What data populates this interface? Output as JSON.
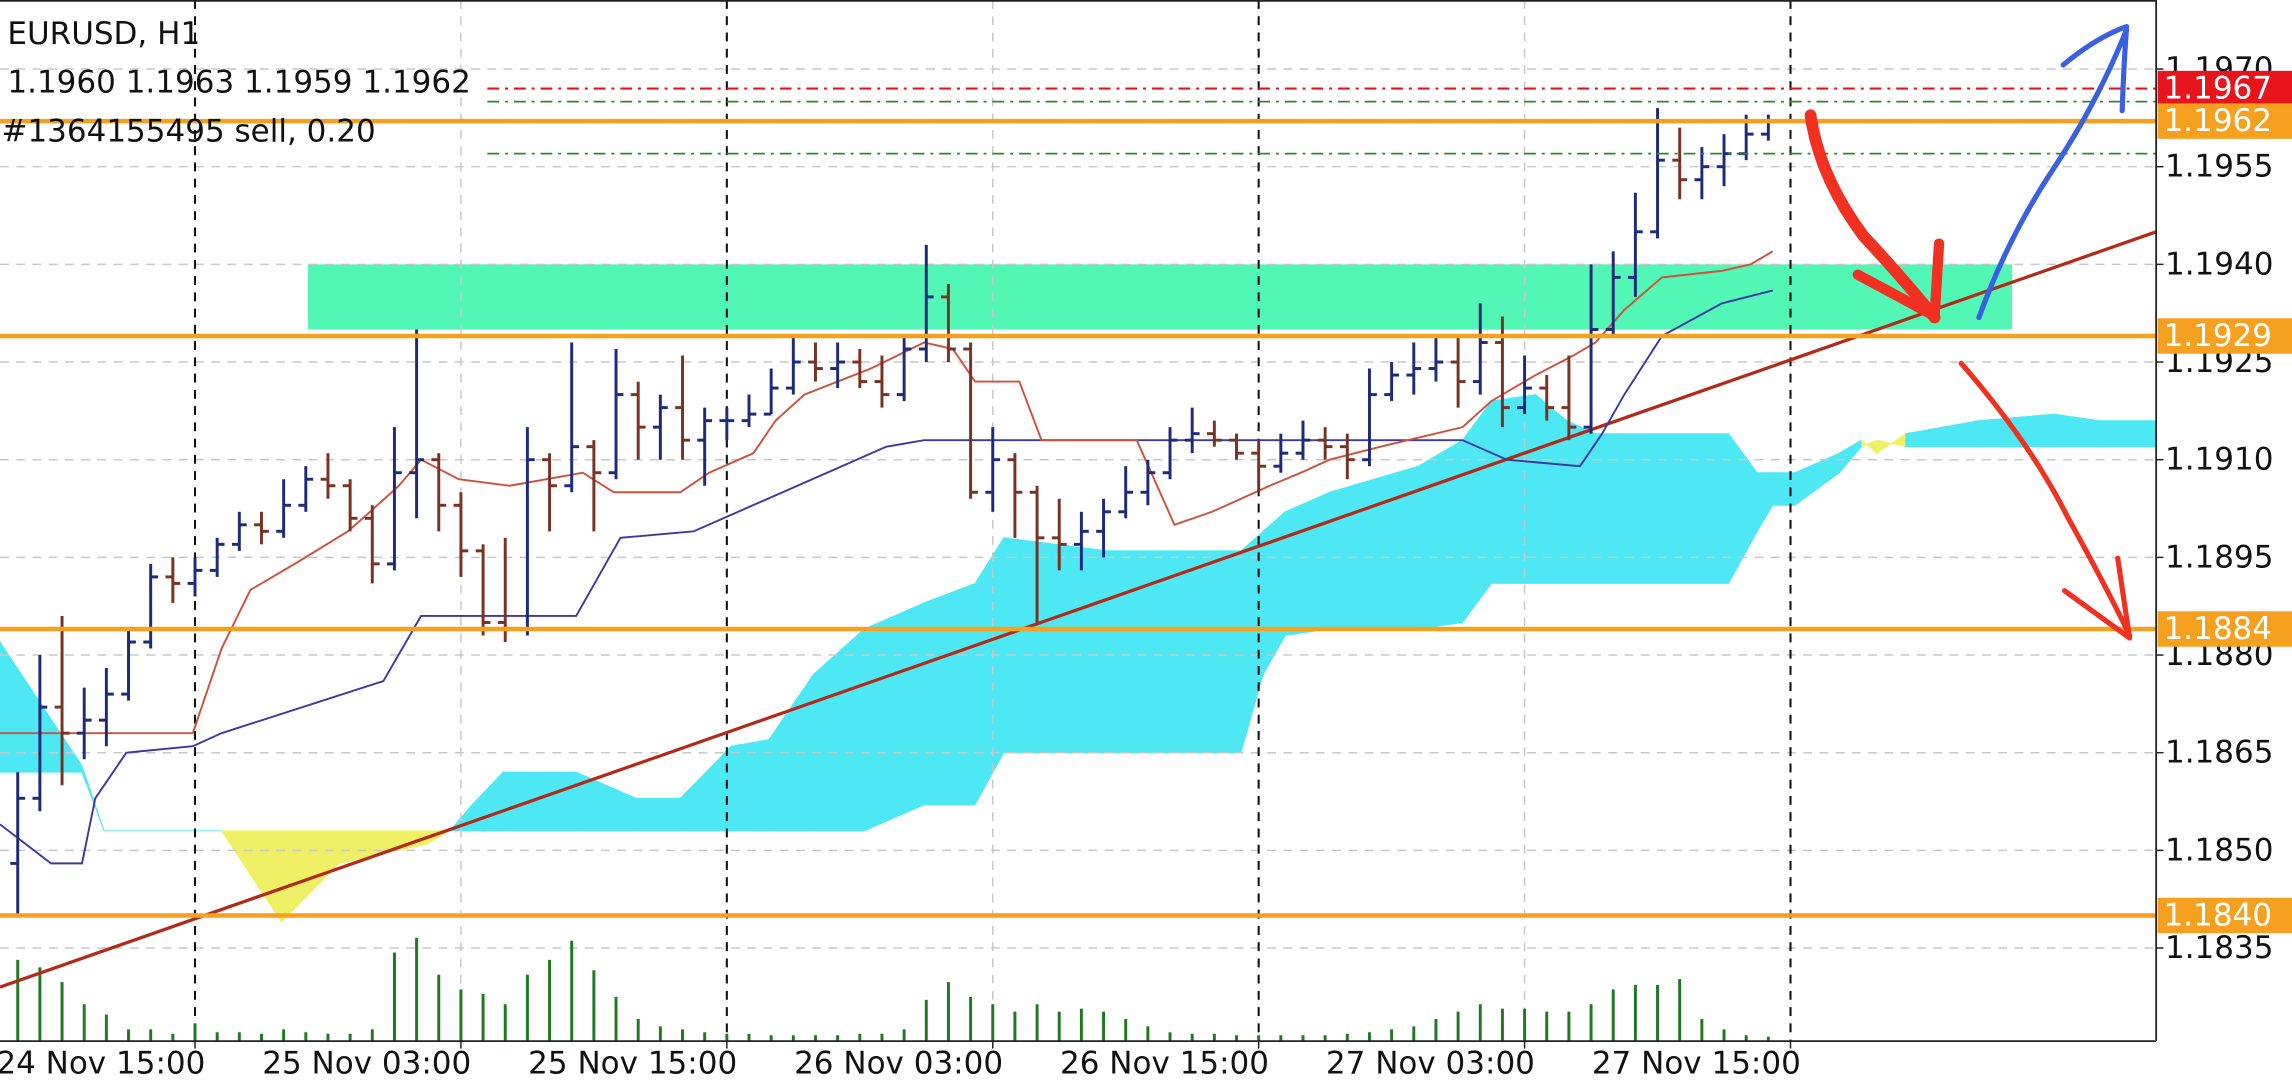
{
  "chart_data": {
    "type": "ohlc",
    "title": "EURUSD, H1",
    "subtitle": "1.1960 1.1963 1.1959 1.1962",
    "annotation": "#1364155495 sell, 0.20",
    "up_color": "#1e2a7a",
    "down_color": "#7a3222",
    "bars": [
      [
        1.1848,
        1.1862,
        1.184,
        1.1858
      ],
      [
        1.1858,
        1.188,
        1.1856,
        1.1872
      ],
      [
        1.1872,
        1.1886,
        1.186,
        1.1868
      ],
      [
        1.1868,
        1.1875,
        1.1864,
        1.187
      ],
      [
        1.187,
        1.1878,
        1.1866,
        1.1874
      ],
      [
        1.1874,
        1.1884,
        1.1873,
        1.1882
      ],
      [
        1.1882,
        1.1894,
        1.1881,
        1.1892
      ],
      [
        1.1892,
        1.1895,
        1.1888,
        1.1891
      ],
      [
        1.1891,
        1.1895,
        1.1889,
        1.1893
      ],
      [
        1.1893,
        1.1898,
        1.1892,
        1.1897
      ],
      [
        1.1897,
        1.1902,
        1.1896,
        1.19
      ],
      [
        1.19,
        1.1902,
        1.1897,
        1.1899
      ],
      [
        1.1899,
        1.1907,
        1.1898,
        1.1903
      ],
      [
        1.1903,
        1.1909,
        1.1902,
        1.1907
      ],
      [
        1.1907,
        1.1911,
        1.1904,
        1.1906
      ],
      [
        1.1906,
        1.1907,
        1.1899,
        1.1901
      ],
      [
        1.1901,
        1.1903,
        1.1891,
        1.1894
      ],
      [
        1.1894,
        1.1915,
        1.1893,
        1.1908
      ],
      [
        1.1908,
        1.193,
        1.1901,
        1.191
      ],
      [
        1.191,
        1.1911,
        1.1899,
        1.1903
      ],
      [
        1.1903,
        1.1905,
        1.1892,
        1.1896
      ],
      [
        1.1896,
        1.1897,
        1.1883,
        1.1885
      ],
      [
        1.1885,
        1.1898,
        1.1882,
        1.1884
      ],
      [
        1.1884,
        1.1915,
        1.1883,
        1.191
      ],
      [
        1.191,
        1.1911,
        1.1899,
        1.1906
      ],
      [
        1.1906,
        1.1928,
        1.1905,
        1.1912
      ],
      [
        1.1912,
        1.1913,
        1.1899,
        1.1908
      ],
      [
        1.1908,
        1.1927,
        1.1907,
        1.192
      ],
      [
        1.192,
        1.1922,
        1.191,
        1.1915
      ],
      [
        1.1915,
        1.192,
        1.191,
        1.1918
      ],
      [
        1.1918,
        1.1926,
        1.191,
        1.1913
      ],
      [
        1.1913,
        1.1918,
        1.1906,
        1.1916
      ],
      [
        1.1916,
        1.1918,
        1.1913,
        1.1916
      ],
      [
        1.1916,
        1.192,
        1.1915,
        1.1917
      ],
      [
        1.1917,
        1.1924,
        1.1917,
        1.1921
      ],
      [
        1.1921,
        1.1929,
        1.192,
        1.1925
      ],
      [
        1.1925,
        1.1928,
        1.1922,
        1.1924
      ],
      [
        1.1924,
        1.1928,
        1.1921,
        1.1925
      ],
      [
        1.1925,
        1.1927,
        1.1921,
        1.1922
      ],
      [
        1.1922,
        1.1926,
        1.1918,
        1.192
      ],
      [
        1.192,
        1.1929,
        1.1919,
        1.1927
      ],
      [
        1.1927,
        1.1943,
        1.1925,
        1.1935
      ],
      [
        1.1935,
        1.1937,
        1.1925,
        1.1927
      ],
      [
        1.1927,
        1.1928,
        1.1904,
        1.1905
      ],
      [
        1.1905,
        1.1915,
        1.1902,
        1.191
      ],
      [
        1.191,
        1.1911,
        1.1898,
        1.1905
      ],
      [
        1.1905,
        1.1906,
        1.1885,
        1.1898
      ],
      [
        1.1898,
        1.1904,
        1.1893,
        1.1897
      ],
      [
        1.1897,
        1.1902,
        1.1893,
        1.1899
      ],
      [
        1.1899,
        1.1904,
        1.1895,
        1.1902
      ],
      [
        1.1902,
        1.1909,
        1.1901,
        1.1905
      ],
      [
        1.1905,
        1.191,
        1.1903,
        1.1908
      ],
      [
        1.1908,
        1.1915,
        1.1907,
        1.1913
      ],
      [
        1.1913,
        1.1918,
        1.1911,
        1.1914
      ],
      [
        1.1914,
        1.1916,
        1.1912,
        1.1913
      ],
      [
        1.1913,
        1.1914,
        1.191,
        1.1911
      ],
      [
        1.1911,
        1.1913,
        1.1905,
        1.1909
      ],
      [
        1.1909,
        1.1914,
        1.1908,
        1.1911
      ],
      [
        1.1911,
        1.1916,
        1.191,
        1.1913
      ],
      [
        1.1913,
        1.1915,
        1.191,
        1.1912
      ],
      [
        1.1912,
        1.1914,
        1.1907,
        1.191
      ],
      [
        1.191,
        1.1924,
        1.1909,
        1.192
      ],
      [
        1.192,
        1.1925,
        1.1919,
        1.1923
      ],
      [
        1.1923,
        1.1928,
        1.192,
        1.1924
      ],
      [
        1.1924,
        1.1929,
        1.1922,
        1.1925
      ],
      [
        1.1925,
        1.1929,
        1.1918,
        1.1922
      ],
      [
        1.1922,
        1.1934,
        1.192,
        1.1928
      ],
      [
        1.1928,
        1.1932,
        1.1915,
        1.1918
      ],
      [
        1.1918,
        1.1926,
        1.1917,
        1.1921
      ],
      [
        1.1921,
        1.1923,
        1.1916,
        1.1918
      ],
      [
        1.1918,
        1.1926,
        1.1913,
        1.1915
      ],
      [
        1.1915,
        1.194,
        1.1914,
        1.193
      ],
      [
        1.193,
        1.1942,
        1.1929,
        1.1938
      ],
      [
        1.1938,
        1.1951,
        1.1935,
        1.1945
      ],
      [
        1.1945,
        1.1964,
        1.1944,
        1.1956
      ],
      [
        1.1956,
        1.1961,
        1.195,
        1.1953
      ],
      [
        1.1953,
        1.1958,
        1.195,
        1.1955
      ],
      [
        1.1955,
        1.196,
        1.1952,
        1.1957
      ],
      [
        1.1957,
        1.1963,
        1.1956,
        1.196
      ],
      [
        1.196,
        1.1963,
        1.1959,
        1.1962
      ]
    ],
    "volume_color": "#1e7a1e",
    "volume_lim": [
      0,
      100
    ],
    "volume": [
      55,
      50,
      40,
      25,
      18,
      8,
      8,
      5,
      12,
      6,
      6,
      5,
      8,
      6,
      5,
      5,
      8,
      60,
      70,
      45,
      35,
      32,
      25,
      45,
      55,
      68,
      48,
      30,
      15,
      10,
      8,
      6,
      5,
      5,
      4,
      4,
      4,
      4,
      5,
      5,
      8,
      28,
      40,
      30,
      25,
      20,
      25,
      20,
      22,
      20,
      15,
      10,
      6,
      5,
      5,
      4,
      4,
      4,
      4,
      4,
      5,
      6,
      8,
      10,
      15,
      20,
      25,
      22,
      22,
      20,
      20,
      25,
      35,
      38,
      38,
      42,
      15,
      8,
      4,
      3
    ],
    "tenkan": {
      "color": "#d0503a",
      "x": [
        -0.8,
        7.9,
        9.2,
        10.5,
        12.5,
        14.9,
        15.9,
        17.2,
        18.2,
        19.9,
        22.2,
        25.5,
        26.9,
        29.9,
        31.2,
        33.2,
        34.2,
        35.5,
        38.5,
        40.9,
        42.2,
        43.2,
        45.2,
        46.2,
        50.5,
        52.2,
        53.9,
        56.5,
        57.9,
        59.2,
        61.5,
        65.2,
        66.5,
        68.5,
        70.2,
        71.2,
        72.5,
        74.2,
        76.9,
        78.2,
        79.2
      ],
      "values": [
        1.1868,
        1.1868,
        1.1881,
        1.189,
        1.1894,
        1.1899,
        1.1902,
        1.1906,
        1.191,
        1.1907,
        1.1906,
        1.1908,
        1.1905,
        1.1905,
        1.1908,
        1.1911,
        1.1916,
        1.192,
        1.1924,
        1.1928,
        1.1927,
        1.1922,
        1.1922,
        1.1913,
        1.1913,
        1.19,
        1.1902,
        1.1906,
        1.1908,
        1.191,
        1.1912,
        1.1915,
        1.1919,
        1.1923,
        1.1926,
        1.1928,
        1.1933,
        1.1938,
        1.1939,
        1.194,
        1.1942
      ]
    },
    "kijun": {
      "color": "#3a3aa0",
      "x": [
        -0.8,
        1.5,
        2.9,
        3.5,
        4.9,
        7.9,
        9.2,
        16.5,
        18.2,
        25.2,
        27.2,
        30.5,
        39.2,
        40.9,
        65.2,
        67.2,
        70.5,
        71.5,
        72.5,
        74.2,
        76.9,
        79.2
      ],
      "values": [
        1.1854,
        1.1848,
        1.1848,
        1.1858,
        1.1865,
        1.1866,
        1.1868,
        1.1876,
        1.1886,
        1.1886,
        1.1898,
        1.1899,
        1.1912,
        1.1913,
        1.1913,
        1.191,
        1.1909,
        1.1914,
        1.192,
        1.1929,
        1.1934,
        1.1936
      ]
    },
    "cloud": {
      "up_color": "#4de8f4",
      "down_color": "#f0f066",
      "x": [
        -0.8,
        2.9,
        3.9,
        9.2,
        11.9,
        14.5,
        18.5,
        19.5,
        20.5,
        21.9,
        25.2,
        27.9,
        29.9,
        32.2,
        33.9,
        35.9,
        38.2,
        40.9,
        43.2,
        44.5,
        49.2,
        55.2,
        56.2,
        57.2,
        59.2,
        63.2,
        65.2,
        66.5,
        68.5,
        69.9,
        71.2,
        77.2,
        78.5,
        79.2,
        80.2,
        82.2,
        83.2,
        83.9,
        85.2,
        88.5,
        91.9,
        93.9,
        96.5
      ],
      "span_a": [
        1.1882,
        1.1863,
        1.1853,
        1.1853,
        1.1839,
        1.1848,
        1.1851,
        1.1853,
        1.1857,
        1.1862,
        1.1862,
        1.1858,
        1.1858,
        1.1866,
        1.1867,
        1.1877,
        1.1884,
        1.1888,
        1.1891,
        1.1898,
        1.1896,
        1.1896,
        1.1899,
        1.1902,
        1.1905,
        1.1909,
        1.1913,
        1.1919,
        1.192,
        1.1916,
        1.1914,
        1.1914,
        1.1908,
        1.1908,
        1.1908,
        1.1911,
        1.1913,
        1.1911,
        1.1914,
        1.1916,
        1.1917,
        1.1916,
        1.1916
      ],
      "span_b": [
        1.1862,
        1.1862,
        1.1853,
        1.1853,
        1.1853,
        1.1853,
        1.1853,
        1.1853,
        1.1853,
        1.1853,
        1.1853,
        1.1853,
        1.1853,
        1.1853,
        1.1853,
        1.1853,
        1.1853,
        1.1857,
        1.1857,
        1.1865,
        1.1865,
        1.1865,
        1.1877,
        1.1883,
        1.1884,
        1.1884,
        1.1885,
        1.1891,
        1.1891,
        1.1891,
        1.1891,
        1.1891,
        1.1899,
        1.1903,
        1.1903,
        1.1908,
        1.1912,
        1.1913,
        1.1912,
        1.1912,
        1.1912,
        1.1912,
        1.1912
      ]
    },
    "zone": {
      "color": "#52f7b5",
      "x": [
        13.1,
        90.0
      ],
      "values": [
        1.194,
        1.193
      ]
    },
    "trend_line": {
      "color": "#b22a1a",
      "x": [
        -0.8,
        96.5
      ],
      "values": [
        1.1829,
        1.1945
      ]
    },
    "levels": [
      {
        "value": 1.1967,
        "color": "#e8141c",
        "style": "dashdot"
      },
      {
        "value": 1.1962,
        "color": "#f5a01e",
        "style": "solid"
      },
      {
        "value": 1.1929,
        "color": "#f5a01e",
        "style": "solid"
      },
      {
        "value": 1.1884,
        "color": "#f5a01e",
        "style": "solid"
      },
      {
        "value": 1.184,
        "label": "1.1840",
        "color": "#f5a01e",
        "style": "solid"
      }
    ],
    "order_lines": [
      {
        "value": 1.1965,
        "color": "#2a8a2a"
      },
      {
        "value": 1.1957,
        "color": "#2a8a2a"
      }
    ],
    "xlim": [
      -0.8,
      96.5
    ],
    "xticks": [
      {
        "value": 8,
        "label": "24 Nov 15:00"
      },
      {
        "value": 20,
        "label": "25 Nov 03:00"
      },
      {
        "value": 32,
        "label": "25 Nov 15:00"
      },
      {
        "value": 44,
        "label": "26 Nov 03:00"
      },
      {
        "value": 56,
        "label": "26 Nov 15:00"
      },
      {
        "value": 68,
        "label": "27 Nov 03:00"
      },
      {
        "value": 80,
        "label": "27 Nov 15:00"
      }
    ],
    "separators": [
      8,
      32,
      56,
      80
    ],
    "ylim": [
      1.18207,
      1.19806
    ],
    "yticks": [
      {
        "value": 1.197,
        "label": "1.1970"
      },
      1.1955,
      {
        "value": 1.194,
        "label": "1.1940"
      },
      1.1925,
      {
        "value": 1.191,
        "label": "1.1910"
      },
      1.1895,
      {
        "value": 1.188,
        "label": "1.1880"
      },
      1.1865,
      {
        "value": 1.185,
        "label": "1.1850"
      },
      1.1835
    ],
    "grid": true
  }
}
